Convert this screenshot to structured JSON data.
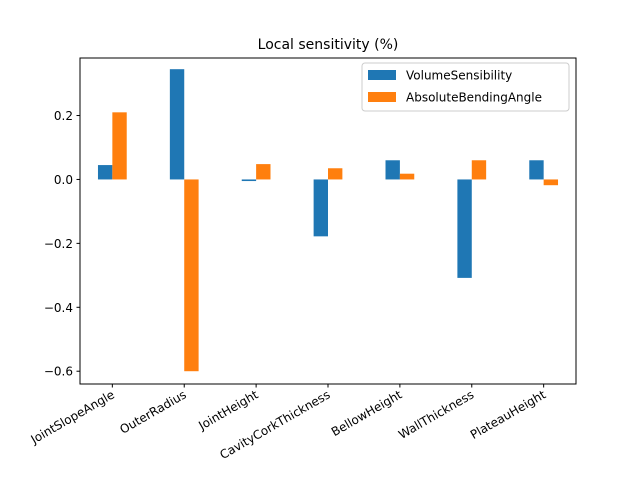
{
  "chart_data": {
    "type": "bar",
    "title": "Local sensitivity (%)",
    "xlabel": "",
    "ylabel": "",
    "categories": [
      "JointSlopeAngle",
      "OuterRadius",
      "JointHeight",
      "CavityCorkThickness",
      "BellowHeight",
      "WallThickness",
      "PlateauHeight"
    ],
    "series": [
      {
        "name": "VolumeSensibility",
        "color": "#1f77b4",
        "values": [
          0.045,
          0.345,
          -0.005,
          -0.178,
          0.06,
          -0.308,
          0.06
        ]
      },
      {
        "name": "AbsoluteBendingAngle",
        "color": "#ff7f0e",
        "values": [
          0.21,
          -0.6,
          0.048,
          0.035,
          0.018,
          0.06,
          -0.018
        ]
      }
    ],
    "ylim": [
      -0.64,
      0.38
    ],
    "yticks": [
      -0.6,
      -0.4,
      -0.2,
      0.0,
      0.2
    ],
    "ytick_labels": [
      "−0.6",
      "−0.4",
      "−0.2",
      "0.0",
      "0.2"
    ],
    "xtick_rotation": 30,
    "grid": false,
    "legend_position": "top-right"
  }
}
